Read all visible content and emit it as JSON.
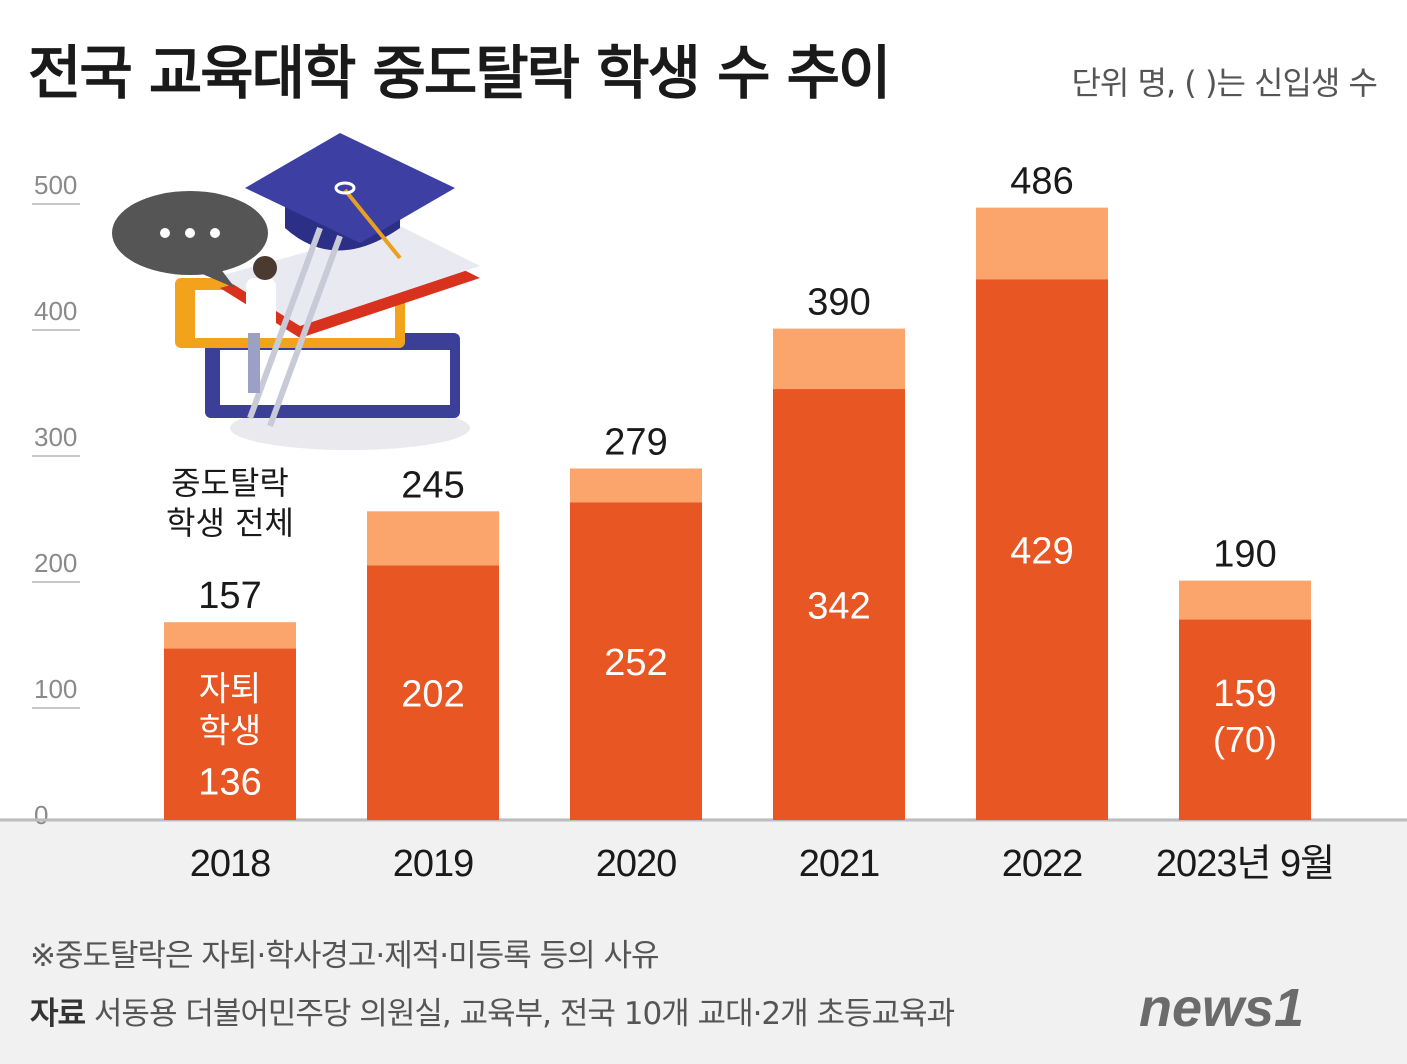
{
  "title": "전국 교육대학 중도탈락 학생 수 추이",
  "unit_note": "단위 명, ( )는 신입생 수",
  "footnote": "※중도탈락은 자퇴·학사경고·제적·미등록 등의 사유",
  "source_label": "자료",
  "source_text": "서동용 더불어민주당 의원실, 교육부, 전국 10개 교대·2개 초등교육과",
  "logo_text": "news1",
  "colors": {
    "total": "#fba56d",
    "dropout": "#e85623",
    "axis": "#c8c8c8"
  },
  "chart_data": {
    "type": "bar",
    "title": "전국 교육대학 중도탈락 학생 수 추이",
    "ylim": [
      0,
      500
    ],
    "yticks": [
      "0",
      "100",
      "200",
      "300",
      "400",
      "500"
    ],
    "categories": [
      "2018",
      "2019",
      "2020",
      "2021",
      "2022",
      "2023년 9월"
    ],
    "series": [
      {
        "name": "중도탈락 학생 전체",
        "values": [
          157,
          245,
          279,
          390,
          486,
          190
        ]
      },
      {
        "name": "자퇴 학생",
        "values": [
          136,
          202,
          252,
          342,
          429,
          159
        ]
      }
    ],
    "freshmen_labels": [
      "",
      "",
      "",
      "",
      "",
      "(70)"
    ],
    "annotations": {
      "total_legend": "중도탈락 학생 전체",
      "dropout_legend": "자퇴 학생"
    }
  }
}
